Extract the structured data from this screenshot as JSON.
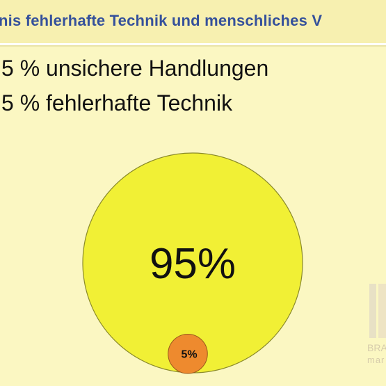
{
  "header": {
    "title": "nis fehlerhafte Technik und menschliches V"
  },
  "bullets": [
    "5 % unsichere Handlungen",
    "5 % fehlerhafte Technik"
  ],
  "colors": {
    "big_slice": "#f1f035",
    "small_slice": "#ee8a2e",
    "outline": "#8a8a2a",
    "title": "#35519b",
    "background": "#fbf7c2"
  },
  "watermark": {
    "line1": "BRA",
    "line2": "mar"
  },
  "chart_data": {
    "type": "pie",
    "title": "",
    "slices": [
      {
        "label": "95%",
        "value": 95,
        "color": "#f1f035"
      },
      {
        "label": "5%",
        "value": 5,
        "color": "#ee8a2e"
      }
    ]
  }
}
